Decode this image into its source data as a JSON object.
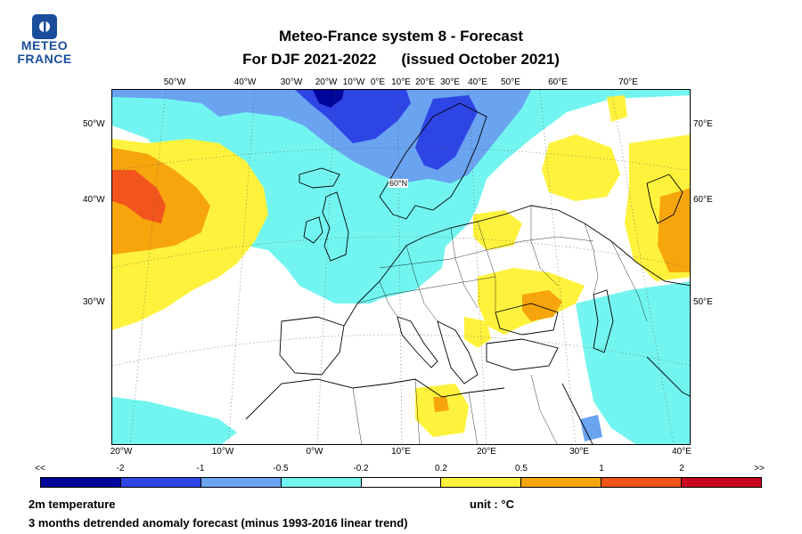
{
  "logo": {
    "line1": "METEO",
    "line2": "FRANCE",
    "color": "#1a4e9c"
  },
  "title": {
    "line1": "Meteo-France system 8  -  Forecast",
    "line2a": "For DJF 2021-2022",
    "line2b": "(issued October 2021)"
  },
  "axes": {
    "top": [
      "50°W",
      "40°W",
      "30°W",
      "20°W",
      "10°W",
      "0°E",
      "10°E",
      "20°E",
      "30°E",
      "40°E",
      "50°E",
      "60°E",
      "70°E"
    ],
    "bottom": [
      "20°W",
      "10°W",
      "0°W",
      "10°E",
      "20°E",
      "30°E",
      "40°E"
    ],
    "left": [
      "50°W",
      "40°W",
      "30°W"
    ],
    "right": [
      "70°E",
      "60°E",
      "50°E"
    ],
    "inner": "60°N"
  },
  "colorbar": {
    "labels": [
      "<<",
      "-2",
      "-1",
      "-0.5",
      "-0.2",
      "0.2",
      "0.5",
      "1",
      "2",
      ">>"
    ],
    "colors": [
      "#00059a",
      "#2e45e6",
      "#6aa3f0",
      "#72f5f0",
      "#ffffff",
      "#fff23c",
      "#f7a50d",
      "#f2551c",
      "#c8081e"
    ]
  },
  "footer": {
    "variable": "2m temperature",
    "unit": "unit : °C",
    "description": "3 months detrended anomaly forecast (minus 1993-2016 linear trend)"
  }
}
